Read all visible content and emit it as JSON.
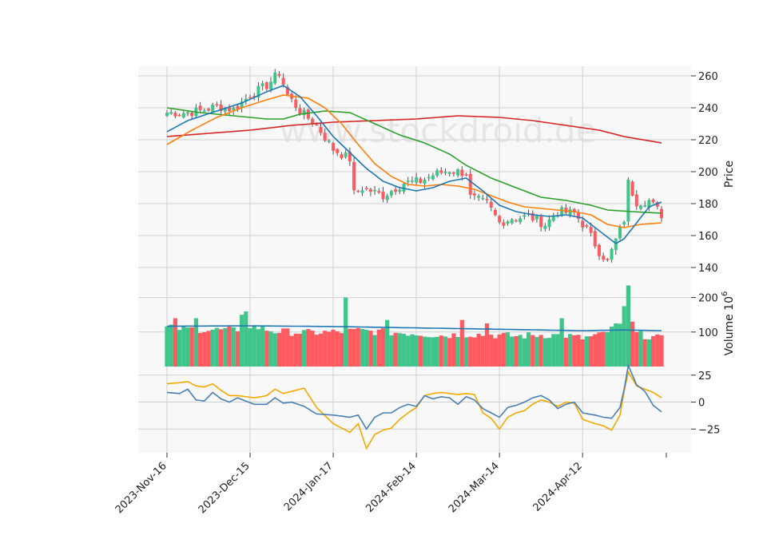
{
  "watermark": "www.stockdroid.de",
  "chart_data": {
    "type": "candlestick",
    "colors": {
      "up": "#3fc48a",
      "down": "#ff5a5f",
      "sma_fast": "#1f77b4",
      "sma_mid": "#ff7f0e",
      "sma_slow": "#2ca02c",
      "sma_long": "#d62728",
      "vol_sma": "#1f77b4",
      "osc_a": "#4a7fb5",
      "osc_b": "#f5a800"
    },
    "x_tick_labels": [
      "2023-Nov-16",
      "2023-Dec-15",
      "2024-Jan-17",
      "2024-Feb-14",
      "2024-Mar-14",
      "2024-Apr-12"
    ],
    "x_tick_index": [
      0,
      20,
      40,
      60,
      80,
      100
    ],
    "n": 120,
    "price_panel": {
      "ylabel": "Price",
      "yticks": [
        140,
        160,
        180,
        200,
        220,
        240,
        260
      ],
      "ylim": [
        132,
        266
      ],
      "anchors": [
        [
          0,
          237
        ],
        [
          4,
          237
        ],
        [
          8,
          238
        ],
        [
          12,
          241
        ],
        [
          16,
          239
        ],
        [
          20,
          248
        ],
        [
          24,
          254
        ],
        [
          27,
          262
        ],
        [
          29,
          248
        ],
        [
          32,
          238
        ],
        [
          36,
          229
        ],
        [
          40,
          214
        ],
        [
          44,
          208
        ],
        [
          45,
          186
        ],
        [
          47,
          190
        ],
        [
          52,
          185
        ],
        [
          57,
          193
        ],
        [
          61,
          194
        ],
        [
          64,
          198
        ],
        [
          68,
          201
        ],
        [
          72,
          199
        ],
        [
          73,
          184
        ],
        [
          77,
          180
        ],
        [
          80,
          168
        ],
        [
          83,
          171
        ],
        [
          87,
          172
        ],
        [
          91,
          167
        ],
        [
          94,
          175
        ],
        [
          98,
          174
        ],
        [
          101,
          164
        ],
        [
          104,
          150
        ],
        [
          106,
          144
        ],
        [
          110,
          170
        ],
        [
          111,
          193
        ],
        [
          113,
          181
        ],
        [
          116,
          182
        ],
        [
          119,
          173
        ]
      ],
      "sma_fast": [
        [
          0,
          225
        ],
        [
          5,
          232
        ],
        [
          12,
          238
        ],
        [
          18,
          243
        ],
        [
          24,
          250
        ],
        [
          28,
          254
        ],
        [
          32,
          247
        ],
        [
          36,
          235
        ],
        [
          40,
          222
        ],
        [
          44,
          212
        ],
        [
          48,
          202
        ],
        [
          52,
          194
        ],
        [
          56,
          190
        ],
        [
          60,
          188
        ],
        [
          64,
          190
        ],
        [
          68,
          194
        ],
        [
          72,
          196
        ],
        [
          76,
          188
        ],
        [
          80,
          179
        ],
        [
          84,
          175
        ],
        [
          88,
          173
        ],
        [
          92,
          172
        ],
        [
          96,
          173
        ],
        [
          100,
          171
        ],
        [
          104,
          163
        ],
        [
          108,
          155
        ],
        [
          110,
          158
        ],
        [
          113,
          168
        ],
        [
          116,
          178
        ],
        [
          119,
          181
        ]
      ],
      "sma_mid": [
        [
          0,
          217
        ],
        [
          6,
          226
        ],
        [
          12,
          234
        ],
        [
          18,
          240
        ],
        [
          24,
          245
        ],
        [
          28,
          248
        ],
        [
          34,
          246
        ],
        [
          38,
          240
        ],
        [
          42,
          230
        ],
        [
          46,
          217
        ],
        [
          50,
          205
        ],
        [
          54,
          197
        ],
        [
          58,
          192
        ],
        [
          62,
          191
        ],
        [
          66,
          192
        ],
        [
          70,
          191
        ],
        [
          74,
          189
        ],
        [
          78,
          185
        ],
        [
          82,
          181
        ],
        [
          86,
          178
        ],
        [
          90,
          177
        ],
        [
          94,
          176
        ],
        [
          98,
          175
        ],
        [
          102,
          173
        ],
        [
          106,
          167
        ],
        [
          110,
          165
        ],
        [
          114,
          167
        ],
        [
          119,
          168
        ]
      ],
      "sma_slow": [
        [
          0,
          240
        ],
        [
          8,
          237
        ],
        [
          16,
          235
        ],
        [
          24,
          233
        ],
        [
          28,
          233
        ],
        [
          32,
          236
        ],
        [
          38,
          238
        ],
        [
          44,
          237
        ],
        [
          50,
          230
        ],
        [
          56,
          223
        ],
        [
          62,
          218
        ],
        [
          68,
          211
        ],
        [
          72,
          204
        ],
        [
          78,
          196
        ],
        [
          84,
          190
        ],
        [
          90,
          184
        ],
        [
          96,
          182
        ],
        [
          102,
          179
        ],
        [
          106,
          176
        ],
        [
          112,
          175
        ],
        [
          119,
          174
        ]
      ],
      "sma_long": [
        [
          0,
          222
        ],
        [
          10,
          224
        ],
        [
          20,
          226
        ],
        [
          30,
          229
        ],
        [
          40,
          231
        ],
        [
          50,
          232
        ],
        [
          60,
          233
        ],
        [
          70,
          235
        ],
        [
          80,
          234
        ],
        [
          88,
          232
        ],
        [
          96,
          229
        ],
        [
          104,
          226
        ],
        [
          110,
          222
        ],
        [
          119,
          218
        ]
      ]
    },
    "volume_panel": {
      "ylabel": "Volume  10^6",
      "yticks": [
        100,
        200
      ],
      "ylim": [
        0,
        250
      ],
      "anchors": [
        [
          0,
          112
        ],
        [
          8,
          108
        ],
        [
          16,
          105
        ],
        [
          20,
          118
        ],
        [
          26,
          102
        ],
        [
          34,
          98
        ],
        [
          40,
          100
        ],
        [
          46,
          104
        ],
        [
          52,
          100
        ],
        [
          60,
          96
        ],
        [
          66,
          90
        ],
        [
          72,
          94
        ],
        [
          78,
          92
        ],
        [
          84,
          88
        ],
        [
          90,
          92
        ],
        [
          96,
          90
        ],
        [
          100,
          82
        ],
        [
          104,
          90
        ],
        [
          110,
          125
        ],
        [
          113,
          95
        ],
        [
          119,
          80
        ]
      ],
      "spikes": [
        [
          2,
          140
        ],
        [
          7,
          140
        ],
        [
          18,
          150
        ],
        [
          19,
          160
        ],
        [
          43,
          200
        ],
        [
          53,
          135
        ],
        [
          71,
          135
        ],
        [
          77,
          125
        ],
        [
          95,
          140
        ],
        [
          108,
          125
        ],
        [
          110,
          175
        ],
        [
          111,
          235
        ],
        [
          112,
          130
        ]
      ],
      "sma": [
        [
          0,
          117
        ],
        [
          20,
          118
        ],
        [
          40,
          116
        ],
        [
          60,
          112
        ],
        [
          80,
          108
        ],
        [
          100,
          104
        ],
        [
          110,
          106
        ],
        [
          119,
          104
        ]
      ]
    },
    "oscillator_panel": {
      "yticks": [
        -25,
        0,
        25
      ],
      "ylim": [
        -47,
        33
      ],
      "line_a": [
        [
          0,
          9
        ],
        [
          3,
          8
        ],
        [
          5,
          12
        ],
        [
          7,
          2
        ],
        [
          9,
          1
        ],
        [
          11,
          9
        ],
        [
          13,
          3
        ],
        [
          15,
          0
        ],
        [
          17,
          4
        ],
        [
          19,
          1
        ],
        [
          21,
          -2
        ],
        [
          24,
          -2
        ],
        [
          26,
          4
        ],
        [
          28,
          -1
        ],
        [
          30,
          0
        ],
        [
          33,
          -4
        ],
        [
          36,
          -11
        ],
        [
          40,
          -12
        ],
        [
          44,
          -14
        ],
        [
          46,
          -12
        ],
        [
          48,
          -25
        ],
        [
          50,
          -14
        ],
        [
          52,
          -10
        ],
        [
          54,
          -10
        ],
        [
          56,
          -5
        ],
        [
          58,
          -2
        ],
        [
          60,
          -4
        ],
        [
          62,
          6
        ],
        [
          64,
          3
        ],
        [
          66,
          5
        ],
        [
          68,
          4
        ],
        [
          70,
          -2
        ],
        [
          72,
          5
        ],
        [
          74,
          2
        ],
        [
          76,
          -6
        ],
        [
          78,
          -10
        ],
        [
          80,
          -14
        ],
        [
          82,
          -5
        ],
        [
          84,
          -3
        ],
        [
          86,
          0
        ],
        [
          88,
          4
        ],
        [
          90,
          6
        ],
        [
          92,
          2
        ],
        [
          94,
          -6
        ],
        [
          96,
          -2
        ],
        [
          98,
          0
        ],
        [
          100,
          -10
        ],
        [
          103,
          -12
        ],
        [
          105,
          -14
        ],
        [
          107,
          -15
        ],
        [
          109,
          -5
        ],
        [
          110,
          12
        ],
        [
          111,
          34
        ],
        [
          113,
          16
        ],
        [
          115,
          10
        ],
        [
          117,
          -3
        ],
        [
          119,
          -9
        ]
      ],
      "line_b": [
        [
          0,
          17
        ],
        [
          3,
          18
        ],
        [
          5,
          19
        ],
        [
          7,
          15
        ],
        [
          9,
          14
        ],
        [
          11,
          17
        ],
        [
          13,
          11
        ],
        [
          15,
          6
        ],
        [
          17,
          6
        ],
        [
          19,
          5
        ],
        [
          21,
          4
        ],
        [
          24,
          6
        ],
        [
          26,
          12
        ],
        [
          28,
          8
        ],
        [
          30,
          10
        ],
        [
          33,
          13
        ],
        [
          36,
          -5
        ],
        [
          40,
          -20
        ],
        [
          44,
          -28
        ],
        [
          46,
          -20
        ],
        [
          48,
          -43
        ],
        [
          50,
          -30
        ],
        [
          52,
          -26
        ],
        [
          54,
          -24
        ],
        [
          56,
          -16
        ],
        [
          58,
          -10
        ],
        [
          60,
          -5
        ],
        [
          62,
          6
        ],
        [
          64,
          8
        ],
        [
          66,
          9
        ],
        [
          68,
          8
        ],
        [
          70,
          7
        ],
        [
          72,
          8
        ],
        [
          74,
          7
        ],
        [
          76,
          -10
        ],
        [
          78,
          -15
        ],
        [
          80,
          -25
        ],
        [
          82,
          -14
        ],
        [
          84,
          -10
        ],
        [
          86,
          -8
        ],
        [
          88,
          -2
        ],
        [
          90,
          2
        ],
        [
          92,
          0
        ],
        [
          94,
          -4
        ],
        [
          96,
          0
        ],
        [
          98,
          -1
        ],
        [
          100,
          -16
        ],
        [
          103,
          -20
        ],
        [
          105,
          -22
        ],
        [
          107,
          -26
        ],
        [
          109,
          -12
        ],
        [
          110,
          10
        ],
        [
          111,
          28
        ],
        [
          113,
          15
        ],
        [
          115,
          12
        ],
        [
          117,
          9
        ],
        [
          119,
          4
        ]
      ]
    }
  }
}
